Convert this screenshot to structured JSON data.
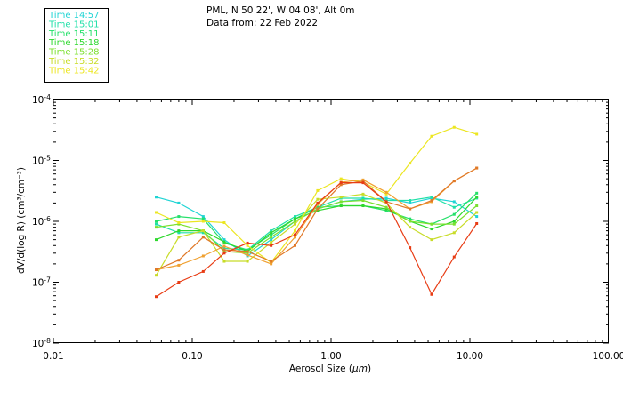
{
  "header": {
    "line1": "PML, N 50 22', W 04 08', Alt 0m",
    "line2": "Data from: 22 Feb 2022"
  },
  "chart_data": {
    "type": "line",
    "xscale": "log",
    "yscale": "log",
    "xlim": [
      0.01,
      100
    ],
    "ylim": [
      1e-08,
      0.0001
    ],
    "xlabel_prefix": "Aerosol Size (",
    "xlabel_unit": "μm",
    "xlabel_suffix": ")",
    "ylabel": "dV/d(log R) (cm³/cm⁻³)",
    "xticks": [
      {
        "value": 0.01,
        "label": "0.01"
      },
      {
        "value": 0.1,
        "label": "0.10"
      },
      {
        "value": 1,
        "label": "1.00"
      },
      {
        "value": 10,
        "label": "10.00"
      },
      {
        "value": 100,
        "label": "100.00"
      }
    ],
    "yticks": [
      {
        "value": 1e-08,
        "label": "10",
        "exp": "-8"
      },
      {
        "value": 1e-07,
        "label": "10",
        "exp": "-7"
      },
      {
        "value": 1e-06,
        "label": "10",
        "exp": "-6"
      },
      {
        "value": 1e-05,
        "label": "10",
        "exp": "-5"
      },
      {
        "value": 0.0001,
        "label": "10",
        "exp": "-4"
      }
    ],
    "grid": false,
    "legend_position": "top-left",
    "x": [
      0.055,
      0.08,
      0.12,
      0.17,
      0.25,
      0.37,
      0.55,
      0.8,
      1.18,
      1.7,
      2.5,
      3.7,
      5.3,
      7.7,
      11.2
    ],
    "series": [
      {
        "name": "Time 14:57",
        "color": "#1fd4d4",
        "values": [
          2.5e-06,
          2e-06,
          1.2e-06,
          5e-07,
          2.7e-07,
          5e-07,
          1e-06,
          1.6e-06,
          2.1e-06,
          2.3e-06,
          2.4e-06,
          2e-06,
          2.4e-06,
          2.1e-06,
          1.2e-06
        ]
      },
      {
        "name": "Time 15:01",
        "color": "#1fe0a8",
        "values": [
          9e-07,
          6.5e-07,
          6.5e-07,
          3.6e-07,
          3.4e-07,
          7e-07,
          1.2e-06,
          1.7e-06,
          2.4e-06,
          2.4e-06,
          2.2e-06,
          2.2e-06,
          2.5e-06,
          1.7e-06,
          2.4e-06
        ]
      },
      {
        "name": "Time 15:11",
        "color": "#25e06a",
        "values": [
          1e-06,
          1.2e-06,
          1.1e-06,
          4.4e-07,
          3.4e-07,
          6e-07,
          1.1e-06,
          1.7e-06,
          1.8e-06,
          1.8e-06,
          1.5e-06,
          1.1e-06,
          9e-07,
          1.3e-06,
          2.9e-06
        ]
      },
      {
        "name": "Time 15:18",
        "color": "#2ed82e",
        "values": [
          5e-07,
          7e-07,
          7e-07,
          4.6e-07,
          3.2e-07,
          6.5e-07,
          1.1e-06,
          1.5e-06,
          1.8e-06,
          1.8e-06,
          1.6e-06,
          1e-06,
          7.5e-07,
          1e-06,
          2.5e-06
        ]
      },
      {
        "name": "Time 15:28",
        "color": "#7be02e",
        "values": [
          8e-07,
          9e-07,
          7e-07,
          3.2e-07,
          3e-07,
          5.5e-07,
          1e-06,
          1.6e-06,
          2.1e-06,
          2.2e-06,
          1.7e-06,
          1e-06,
          9e-07,
          9e-07,
          1.8e-06
        ]
      },
      {
        "name": "Time 15:32",
        "color": "#c8dc28",
        "values": [
          1.3e-07,
          5.5e-07,
          7e-07,
          2.2e-07,
          2.2e-07,
          4.5e-07,
          9e-07,
          2.3e-06,
          2.5e-06,
          2.8e-06,
          2e-06,
          8e-07,
          5e-07,
          6.5e-07,
          1.4e-06
        ]
      },
      {
        "name": "Time 15:42",
        "color": "#ece622",
        "values": [
          1.4e-06,
          9.5e-07,
          1e-06,
          9.5e-07,
          4e-07,
          2.1e-07,
          7e-07,
          3.2e-06,
          5e-06,
          4.4e-06,
          2.8e-06,
          9e-06,
          2.5e-05,
          3.5e-05,
          2.7e-05
        ]
      },
      {
        "name": "",
        "color": "#f0a030",
        "values": [
          1.6e-07,
          1.9e-07,
          2.7e-07,
          3.9e-07,
          2.8e-07,
          2e-07,
          5.5e-07,
          1.9e-06,
          4.4e-06,
          4.8e-06,
          3e-06,
          1.6e-06,
          2.1e-06,
          4.6e-06,
          7.5e-06
        ]
      },
      {
        "name": "",
        "color": "#e07828",
        "values": [
          1.6e-07,
          2.3e-07,
          5.5e-07,
          3.4e-07,
          3.2e-07,
          2.2e-07,
          4e-07,
          1.6e-06,
          4e-06,
          4.6e-06,
          2.1e-06,
          1.6e-06,
          2.2e-06,
          4.6e-06,
          7.5e-06
        ]
      },
      {
        "name": "",
        "color": "#e83c14",
        "values": [
          5.8e-08,
          1e-07,
          1.5e-07,
          3e-07,
          4.4e-07,
          4e-07,
          6e-07,
          2e-06,
          4.3e-06,
          4.3e-06,
          2.1e-06,
          3.7e-07,
          6.3e-08,
          2.6e-07,
          9.2e-07
        ]
      }
    ]
  }
}
